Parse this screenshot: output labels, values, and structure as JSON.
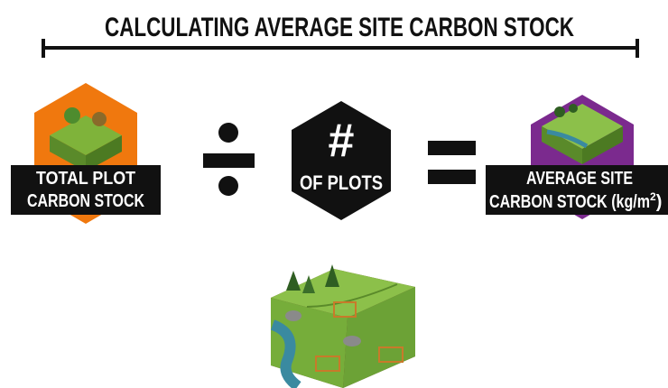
{
  "header": {
    "title": "CALCULATING AVERAGE SITE CARBON STOCK"
  },
  "left": {
    "lines": [
      "TOTAL PLOT",
      "CARBON STOCK"
    ]
  },
  "middle": {
    "symbol": "#",
    "label": "OF PLOTS"
  },
  "right": {
    "lines": [
      "AVERAGE SITE",
      "CARBON STOCK (kg/m"
    ],
    "superscript": "2",
    "closing": ")"
  }
}
